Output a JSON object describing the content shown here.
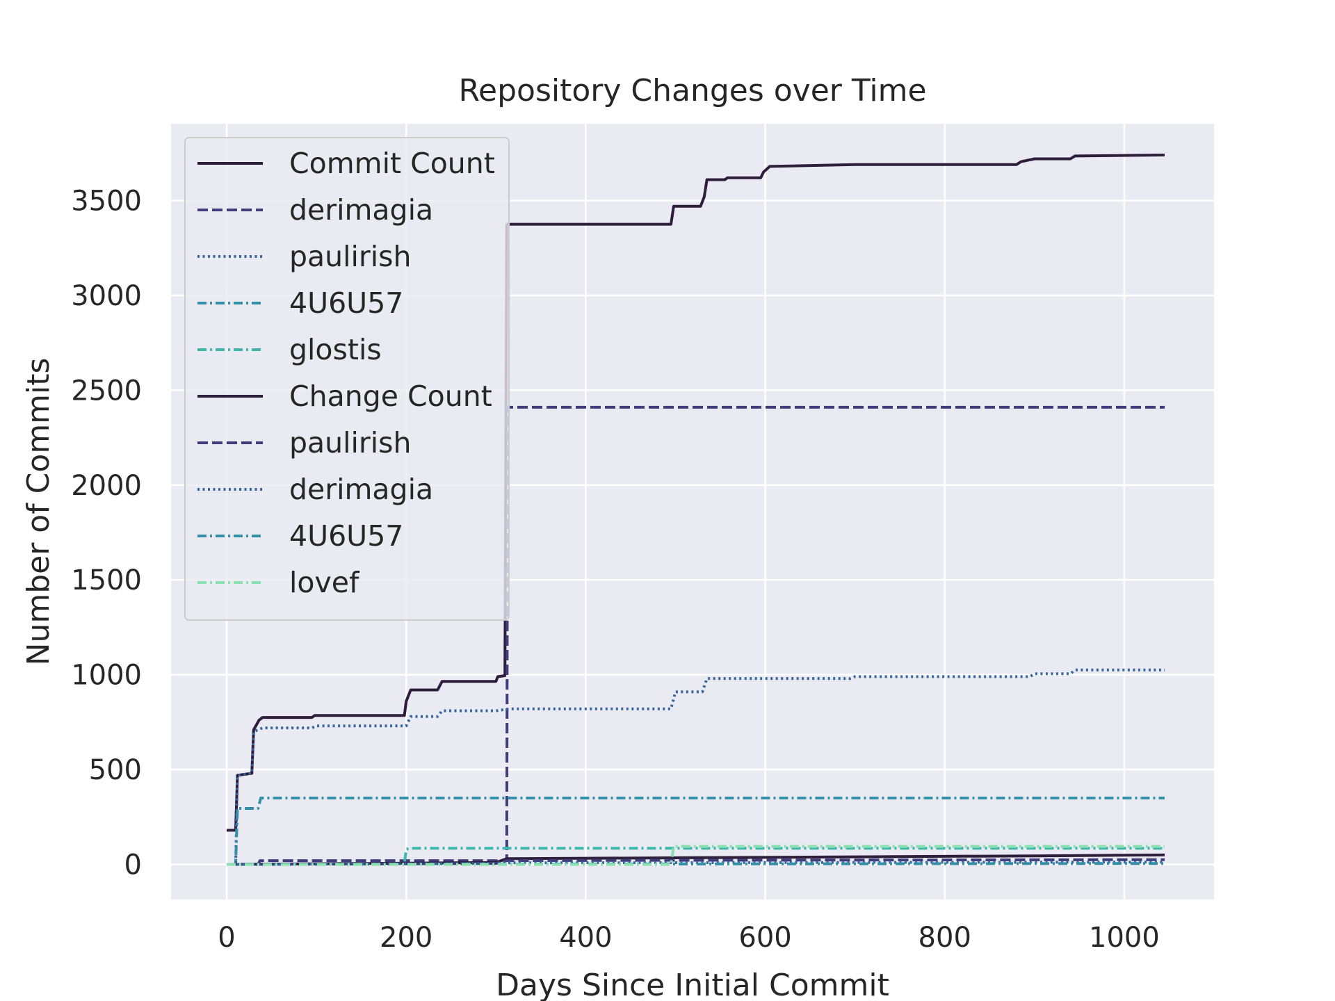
{
  "chart_data": {
    "type": "line",
    "title": "Repository Changes over Time",
    "xlabel": "Days Since Initial Commit",
    "ylabel": "Number of Commits",
    "xlim": [
      -62,
      1100
    ],
    "ylim": [
      -185,
      3905
    ],
    "xticks": [
      0,
      200,
      400,
      600,
      800,
      1000
    ],
    "yticks": [
      0,
      500,
      1000,
      1500,
      2000,
      2500,
      3000,
      3500
    ],
    "grid": true,
    "legend_position": "upper-left",
    "background_color": "#eaeaf2",
    "series": [
      {
        "name": "Commit Count",
        "color": "#2e1e3b",
        "dash": "solid",
        "points": [
          [
            0,
            180
          ],
          [
            10,
            180
          ],
          [
            12,
            470
          ],
          [
            28,
            480
          ],
          [
            30,
            710
          ],
          [
            36,
            760
          ],
          [
            40,
            775
          ],
          [
            95,
            775
          ],
          [
            98,
            785
          ],
          [
            198,
            785
          ],
          [
            200,
            860
          ],
          [
            205,
            920
          ],
          [
            235,
            920
          ],
          [
            240,
            965
          ],
          [
            300,
            965
          ],
          [
            302,
            990
          ],
          [
            310,
            995
          ],
          [
            312,
            3375
          ],
          [
            495,
            3375
          ],
          [
            498,
            3470
          ],
          [
            528,
            3470
          ],
          [
            532,
            3520
          ],
          [
            535,
            3610
          ],
          [
            555,
            3610
          ],
          [
            558,
            3620
          ],
          [
            595,
            3620
          ],
          [
            598,
            3650
          ],
          [
            605,
            3680
          ],
          [
            700,
            3690
          ],
          [
            880,
            3690
          ],
          [
            885,
            3705
          ],
          [
            900,
            3720
          ],
          [
            940,
            3720
          ],
          [
            945,
            3735
          ],
          [
            1045,
            3740
          ]
        ]
      },
      {
        "name": "derimagia",
        "color": "#413d7b",
        "dash": "long-dash",
        "points": [
          [
            0,
            0
          ],
          [
            35,
            0
          ],
          [
            37,
            20
          ],
          [
            305,
            20
          ],
          [
            312,
            25
          ],
          [
            313,
            2410
          ],
          [
            1045,
            2410
          ]
        ]
      },
      {
        "name": "paulirish",
        "color": "#37659e",
        "dash": "dotted",
        "points": [
          [
            0,
            0
          ],
          [
            10,
            0
          ],
          [
            12,
            470
          ],
          [
            28,
            480
          ],
          [
            30,
            700
          ],
          [
            40,
            720
          ],
          [
            95,
            720
          ],
          [
            100,
            730
          ],
          [
            200,
            730
          ],
          [
            205,
            780
          ],
          [
            235,
            780
          ],
          [
            240,
            810
          ],
          [
            300,
            810
          ],
          [
            315,
            820
          ],
          [
            495,
            820
          ],
          [
            500,
            910
          ],
          [
            530,
            910
          ],
          [
            535,
            980
          ],
          [
            695,
            980
          ],
          [
            700,
            990
          ],
          [
            895,
            990
          ],
          [
            900,
            1005
          ],
          [
            940,
            1005
          ],
          [
            945,
            1025
          ],
          [
            1045,
            1025
          ]
        ]
      },
      {
        "name": "4U6U57",
        "color": "#348fa7",
        "dash": "dash-dot",
        "points": [
          [
            0,
            0
          ],
          [
            10,
            0
          ],
          [
            12,
            295
          ],
          [
            35,
            295
          ],
          [
            38,
            350
          ],
          [
            1045,
            350
          ]
        ]
      },
      {
        "name": "glostis",
        "color": "#40b7ad",
        "dash": "dash-dot",
        "points": [
          [
            0,
            0
          ],
          [
            198,
            0
          ],
          [
            200,
            80
          ],
          [
            205,
            85
          ],
          [
            1045,
            85
          ]
        ]
      },
      {
        "name": "Change Count",
        "color": "#2e1e3b",
        "dash": "solid",
        "points": [
          [
            0,
            0
          ],
          [
            150,
            5
          ],
          [
            300,
            10
          ],
          [
            312,
            30
          ],
          [
            500,
            35
          ],
          [
            700,
            40
          ],
          [
            900,
            45
          ],
          [
            1045,
            50
          ]
        ]
      },
      {
        "name": "paulirish",
        "color": "#413d7b",
        "dash": "long-dash",
        "points": [
          [
            0,
            0
          ],
          [
            300,
            5
          ],
          [
            312,
            20
          ],
          [
            500,
            22
          ],
          [
            1045,
            25
          ]
        ]
      },
      {
        "name": "derimagia",
        "color": "#37659e",
        "dash": "dotted",
        "points": [
          [
            0,
            0
          ],
          [
            300,
            5
          ],
          [
            312,
            8
          ],
          [
            1045,
            12
          ]
        ]
      },
      {
        "name": "4U6U57",
        "color": "#348fa7",
        "dash": "dash-dot",
        "points": [
          [
            0,
            0
          ],
          [
            1045,
            5
          ]
        ]
      },
      {
        "name": "lovef",
        "color": "#8be0b0",
        "dash": "dash-dot",
        "points": [
          [
            0,
            0
          ],
          [
            495,
            0
          ],
          [
            498,
            95
          ],
          [
            1045,
            95
          ]
        ]
      }
    ]
  }
}
